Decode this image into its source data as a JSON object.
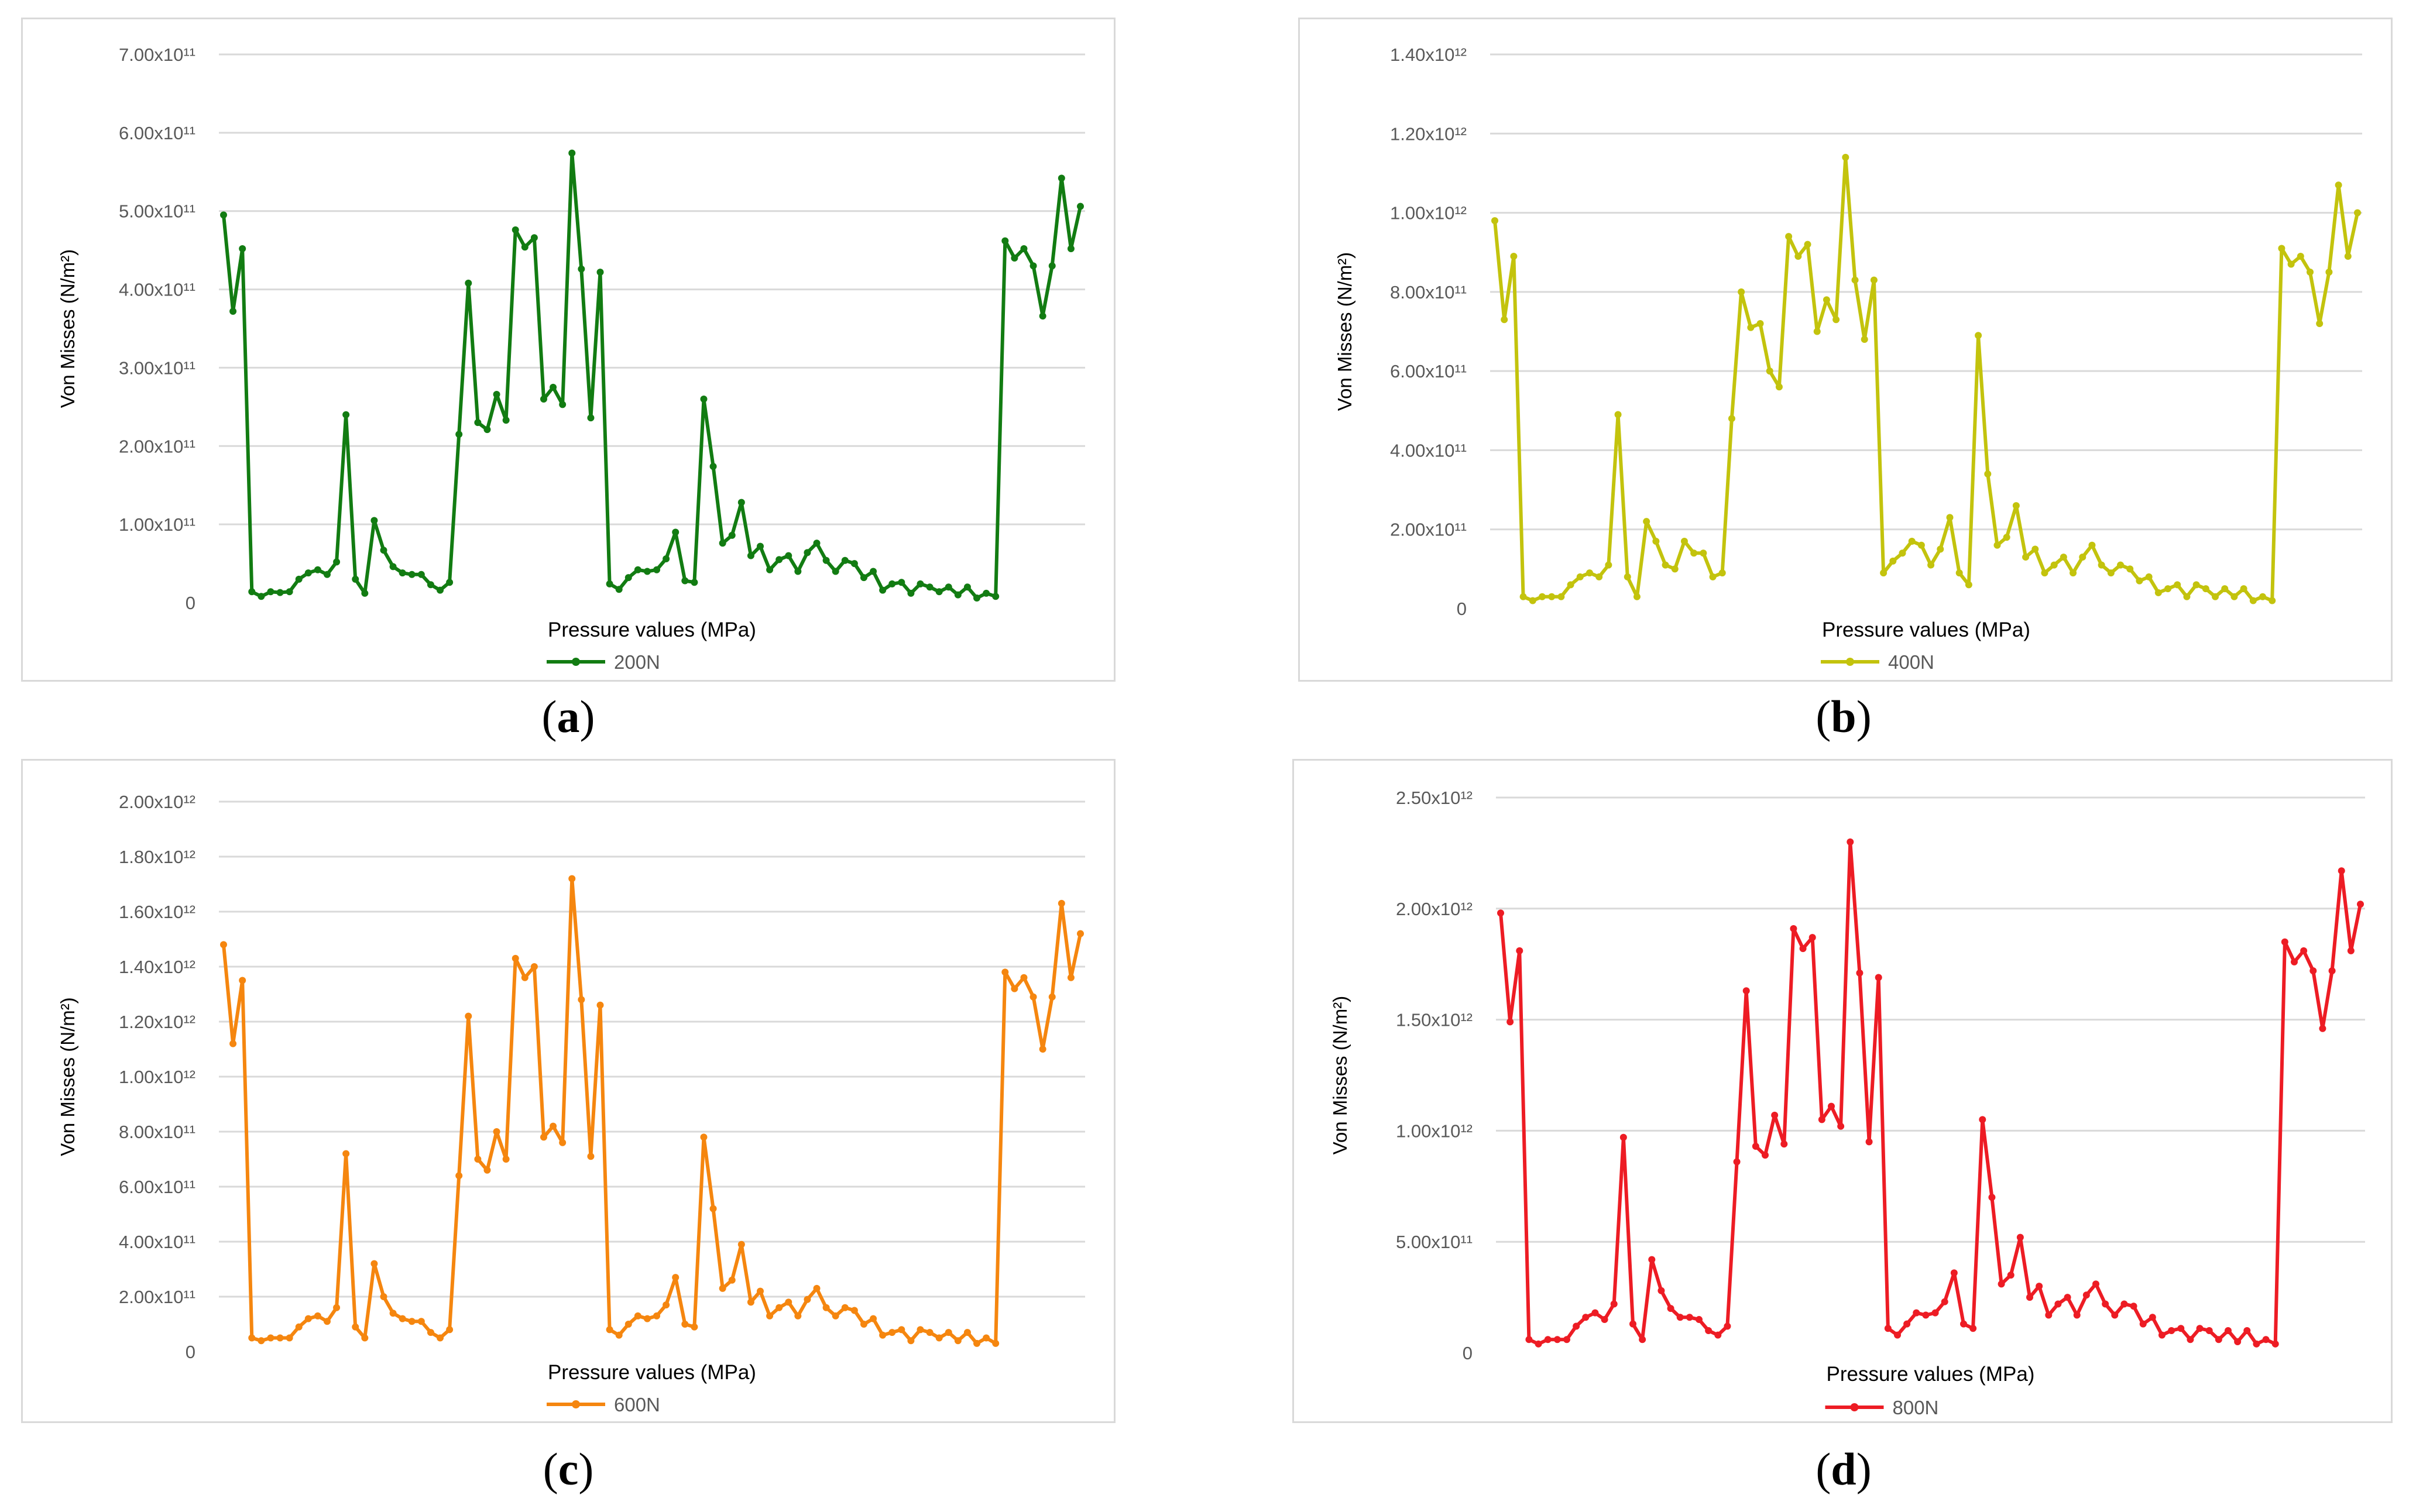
{
  "chart_data": [
    {
      "type": "line",
      "panel_label": "a",
      "title": "",
      "ylabel": "Von Misses (N/m²)",
      "xlabel": "Pressure values (MPa)",
      "legend": "bottom-center",
      "grid": true,
      "ylim": [
        0,
        700000000000
      ],
      "y_ticks": [
        "0",
        "1.00x10¹¹",
        "2.00x10¹¹",
        "3.00x10¹¹",
        "4.00x10¹¹",
        "5.00x10¹¹",
        "6.00x10¹¹",
        "7.00x10¹¹"
      ],
      "color": "#127c12",
      "series": [
        {
          "name": "200N",
          "values": [
            495000000000.0,
            372000000000.0,
            452000000000.0,
            14000000000.0,
            8000000000.0,
            14000000000.0,
            13000000000.0,
            14000000000.0,
            30000000000.0,
            38000000000.0,
            42000000000.0,
            36000000000.0,
            52000000000.0,
            240000000000.0,
            30000000000.0,
            12000000000.0,
            105000000000.0,
            67000000000.0,
            46000000000.0,
            38000000000.0,
            36000000000.0,
            36000000000.0,
            23000000000.0,
            16000000000.0,
            26000000000.0,
            215000000000.0,
            408000000000.0,
            230000000000.0,
            221000000000.0,
            266000000000.0,
            233000000000.0,
            476000000000.0,
            454000000000.0,
            466000000000.0,
            260000000000.0,
            275000000000.0,
            253000000000.0,
            574000000000.0,
            426000000000.0,
            236000000000.0,
            422000000000.0,
            24000000000.0,
            17000000000.0,
            32000000000.0,
            42000000000.0,
            40000000000.0,
            42000000000.0,
            56000000000.0,
            90000000000.0,
            28000000000.0,
            26000000000.0,
            260000000000.0,
            174000000000.0,
            76000000000.0,
            86000000000.0,
            128000000000.0,
            60000000000.0,
            72000000000.0,
            42000000000.0,
            55000000000.0,
            60000000000.0,
            40000000000.0,
            64000000000.0,
            76000000000.0,
            54000000000.0,
            40000000000.0,
            54000000000.0,
            50000000000.0,
            32000000000.0,
            40000000000.0,
            16000000000.0,
            24000000000.0,
            26000000000.0,
            12000000000.0,
            24000000000.0,
            20000000000.0,
            14000000000.0,
            20000000000.0,
            10000000000.0,
            20000000000.0,
            6000000000.0,
            12000000000.0,
            8000000000.0,
            462000000000.0,
            440000000000.0,
            452000000000.0,
            430000000000.0,
            366000000000.0,
            430000000000.0,
            542000000000.0,
            452000000000.0,
            506000000000.0
          ]
        }
      ]
    },
    {
      "type": "line",
      "panel_label": "b",
      "title": "",
      "ylabel": "Von Misses (N/m²)",
      "xlabel": "Pressure values (MPa)",
      "legend": "bottom-center",
      "grid": true,
      "ylim": [
        0,
        1400000000000
      ],
      "y_ticks": [
        "0",
        "2.00x10¹¹",
        "4.00x10¹¹",
        "6.00x10¹¹",
        "8.00x10¹¹",
        "1.00x10¹²",
        "1.20x10¹²",
        "1.40x10¹²"
      ],
      "color": "#c3c30d",
      "series": [
        {
          "name": "400N",
          "values": [
            980000000000.0,
            730000000000.0,
            890000000000.0,
            30000000000.0,
            20000000000.0,
            30000000000.0,
            30000000000.0,
            30000000000.0,
            60000000000.0,
            80000000000.0,
            90000000000.0,
            80000000000.0,
            110000000000.0,
            490000000000.0,
            80000000000.0,
            30000000000.0,
            220000000000.0,
            170000000000.0,
            110000000000.0,
            100000000000.0,
            170000000000.0,
            140000000000.0,
            140000000000.0,
            80000000000.0,
            90000000000.0,
            480000000000.0,
            800000000000.0,
            710000000000.0,
            720000000000.0,
            600000000000.0,
            560000000000.0,
            940000000000.0,
            890000000000.0,
            920000000000.0,
            700000000000.0,
            780000000000.0,
            730000000000.0,
            1140000000000.0,
            830000000000.0,
            680000000000.0,
            830000000000.0,
            90000000000.0,
            120000000000.0,
            140000000000.0,
            170000000000.0,
            160000000000.0,
            110000000000.0,
            150000000000.0,
            230000000000.0,
            90000000000.0,
            60000000000.0,
            690000000000.0,
            340000000000.0,
            160000000000.0,
            180000000000.0,
            260000000000.0,
            130000000000.0,
            150000000000.0,
            90000000000.0,
            110000000000.0,
            130000000000.0,
            90000000000.0,
            130000000000.0,
            160000000000.0,
            110000000000.0,
            90000000000.0,
            110000000000.0,
            100000000000.0,
            70000000000.0,
            80000000000.0,
            40000000000.0,
            50000000000.0,
            60000000000.0,
            30000000000.0,
            60000000000.0,
            50000000000.0,
            30000000000.0,
            50000000000.0,
            30000000000.0,
            50000000000.0,
            20000000000.0,
            30000000000.0,
            20000000000.0,
            910000000000.0,
            870000000000.0,
            890000000000.0,
            850000000000.0,
            720000000000.0,
            850000000000.0,
            1070000000000.0,
            890000000000.0,
            1000000000000.0
          ]
        }
      ]
    },
    {
      "type": "line",
      "panel_label": "c",
      "title": "",
      "ylabel": "Von Misses (N/m²)",
      "xlabel": "Pressure values (MPa)",
      "legend": "bottom-center",
      "grid": true,
      "ylim": [
        0,
        2000000000000
      ],
      "y_ticks": [
        "0",
        "2.00x10¹¹",
        "4.00x10¹¹",
        "6.00x10¹¹",
        "8.00x10¹¹",
        "1.00x10¹²",
        "1.20x10¹²",
        "1.40x10¹²",
        "1.60x10¹²",
        "1.80x10¹²",
        "2.00x10¹²"
      ],
      "color": "#f5860f",
      "series": [
        {
          "name": "600N",
          "values": [
            1480000000000.0,
            1120000000000.0,
            1350000000000.0,
            50000000000.0,
            40000000000.0,
            50000000000.0,
            50000000000.0,
            50000000000.0,
            90000000000.0,
            120000000000.0,
            130000000000.0,
            110000000000.0,
            160000000000.0,
            720000000000.0,
            90000000000.0,
            50000000000.0,
            320000000000.0,
            200000000000.0,
            140000000000.0,
            120000000000.0,
            110000000000.0,
            110000000000.0,
            70000000000.0,
            50000000000.0,
            80000000000.0,
            640000000000.0,
            1220000000000.0,
            700000000000.0,
            660000000000.0,
            800000000000.0,
            700000000000.0,
            1430000000000.0,
            1360000000000.0,
            1400000000000.0,
            780000000000.0,
            820000000000.0,
            760000000000.0,
            1720000000000.0,
            1280000000000.0,
            710000000000.0,
            1260000000000.0,
            80000000000.0,
            60000000000.0,
            100000000000.0,
            130000000000.0,
            120000000000.0,
            130000000000.0,
            170000000000.0,
            270000000000.0,
            100000000000.0,
            90000000000.0,
            780000000000.0,
            520000000000.0,
            230000000000.0,
            260000000000.0,
            390000000000.0,
            180000000000.0,
            220000000000.0,
            130000000000.0,
            160000000000.0,
            180000000000.0,
            130000000000.0,
            190000000000.0,
            230000000000.0,
            160000000000.0,
            130000000000.0,
            160000000000.0,
            150000000000.0,
            100000000000.0,
            120000000000.0,
            60000000000.0,
            70000000000.0,
            80000000000.0,
            40000000000.0,
            80000000000.0,
            70000000000.0,
            50000000000.0,
            70000000000.0,
            40000000000.0,
            70000000000.0,
            30000000000.0,
            50000000000.0,
            30000000000.0,
            1380000000000.0,
            1320000000000.0,
            1360000000000.0,
            1290000000000.0,
            1100000000000.0,
            1290000000000.0,
            1630000000000.0,
            1360000000000.0,
            1520000000000.0
          ]
        }
      ]
    },
    {
      "type": "line",
      "panel_label": "d",
      "title": "",
      "ylabel": "Von Misses (N/m²)",
      "xlabel": "Pressure values (MPa)",
      "legend": "bottom-center",
      "grid": true,
      "ylim": [
        0,
        2500000000000
      ],
      "y_ticks": [
        "0",
        "5.00x10¹¹",
        "1.00x10¹²",
        "1.50x10¹²",
        "2.00x10¹²",
        "2.50x10¹²"
      ],
      "color": "#ed1c24",
      "series": [
        {
          "name": "800N",
          "values": [
            1980000000000.0,
            1490000000000.0,
            1810000000000.0,
            60000000000.0,
            40000000000.0,
            60000000000.0,
            60000000000.0,
            60000000000.0,
            120000000000.0,
            160000000000.0,
            180000000000.0,
            150000000000.0,
            220000000000.0,
            970000000000.0,
            130000000000.0,
            60000000000.0,
            420000000000.0,
            280000000000.0,
            200000000000.0,
            160000000000.0,
            160000000000.0,
            150000000000.0,
            100000000000.0,
            80000000000.0,
            120000000000.0,
            860000000000.0,
            1630000000000.0,
            930000000000.0,
            890000000000.0,
            1070000000000.0,
            940000000000.0,
            1910000000000.0,
            1820000000000.0,
            1870000000000.0,
            1050000000000.0,
            1110000000000.0,
            1020000000000.0,
            2300000000000.0,
            1710000000000.0,
            950000000000.0,
            1690000000000.0,
            110000000000.0,
            80000000000.0,
            130000000000.0,
            180000000000.0,
            170000000000.0,
            180000000000.0,
            230000000000.0,
            360000000000.0,
            130000000000.0,
            110000000000.0,
            1050000000000.0,
            700000000000.0,
            310000000000.0,
            350000000000.0,
            520000000000.0,
            250000000000.0,
            300000000000.0,
            170000000000.0,
            220000000000.0,
            250000000000.0,
            170000000000.0,
            260000000000.0,
            310000000000.0,
            220000000000.0,
            170000000000.0,
            220000000000.0,
            210000000000.0,
            130000000000.0,
            160000000000.0,
            80000000000.0,
            100000000000.0,
            110000000000.0,
            60000000000.0,
            110000000000.0,
            100000000000.0,
            60000000000.0,
            100000000000.0,
            50000000000.0,
            100000000000.0,
            40000000000.0,
            60000000000.0,
            40000000000.0,
            1850000000000.0,
            1760000000000.0,
            1810000000000.0,
            1720000000000.0,
            1460000000000.0,
            1720000000000.0,
            2170000000000.0,
            1810000000000.0,
            2020000000000.0
          ]
        }
      ]
    }
  ],
  "captions": [
    "a",
    "b",
    "c",
    "d"
  ]
}
